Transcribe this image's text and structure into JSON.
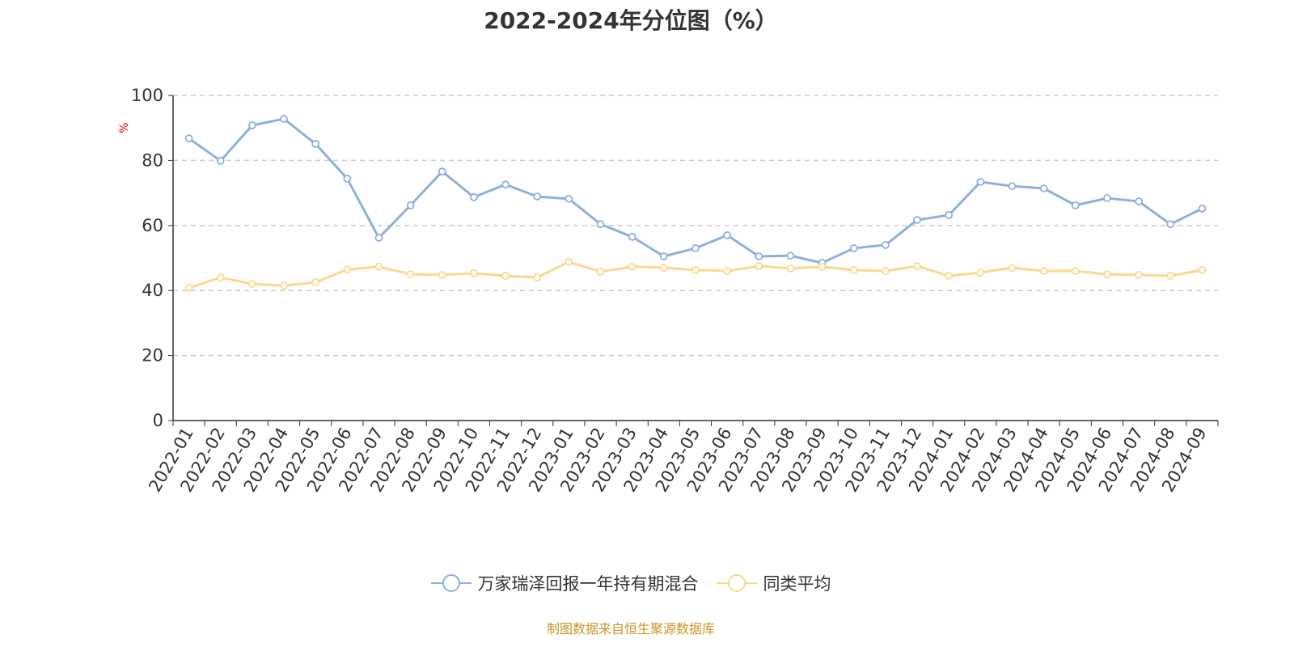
{
  "chart_data": {
    "type": "line",
    "title": "2022-2024年分位图（%）",
    "ylabel": "%",
    "xlabel": "",
    "ylim": [
      0,
      100
    ],
    "yticks": [
      0,
      20,
      40,
      60,
      80,
      100
    ],
    "grid": true,
    "legend_position": "bottom",
    "categories": [
      "2022-01",
      "2022-02",
      "2022-03",
      "2022-04",
      "2022-05",
      "2022-06",
      "2022-07",
      "2022-08",
      "2022-09",
      "2022-10",
      "2022-11",
      "2022-12",
      "2023-01",
      "2023-02",
      "2023-03",
      "2023-04",
      "2023-05",
      "2023-06",
      "2023-07",
      "2023-08",
      "2023-09",
      "2023-10",
      "2023-11",
      "2023-12",
      "2024-01",
      "2024-02",
      "2024-03",
      "2024-04",
      "2024-05",
      "2024-06",
      "2024-07",
      "2024-08",
      "2024-09"
    ],
    "series": [
      {
        "name": "万家瑞泽回报一年持有期混合",
        "color": "#8eb0dc",
        "values": [
          86.8,
          79.9,
          90.8,
          92.8,
          85.1,
          74.4,
          56.2,
          66.2,
          76.6,
          68.7,
          72.6,
          68.9,
          68.2,
          60.4,
          56.5,
          50.5,
          53.0,
          57.0,
          50.5,
          50.7,
          48.5,
          53.0,
          54.0,
          61.7,
          63.2,
          73.4,
          72.1,
          71.4,
          66.2,
          68.4,
          67.4,
          60.4,
          65.2
        ]
      },
      {
        "name": "同类平均",
        "color": "#fcd88f",
        "values": [
          40.8,
          44.0,
          42.0,
          41.5,
          42.5,
          46.5,
          47.3,
          45.0,
          44.8,
          45.3,
          44.5,
          44.0,
          48.8,
          45.8,
          47.3,
          47.0,
          46.3,
          46.0,
          47.5,
          46.8,
          47.3,
          46.3,
          46.0,
          47.5,
          44.5,
          45.5,
          47.0,
          46.0,
          46.0,
          45.0,
          44.8,
          44.5,
          46.3
        ]
      }
    ]
  },
  "source": "制图数据来自恒生聚源数据库"
}
